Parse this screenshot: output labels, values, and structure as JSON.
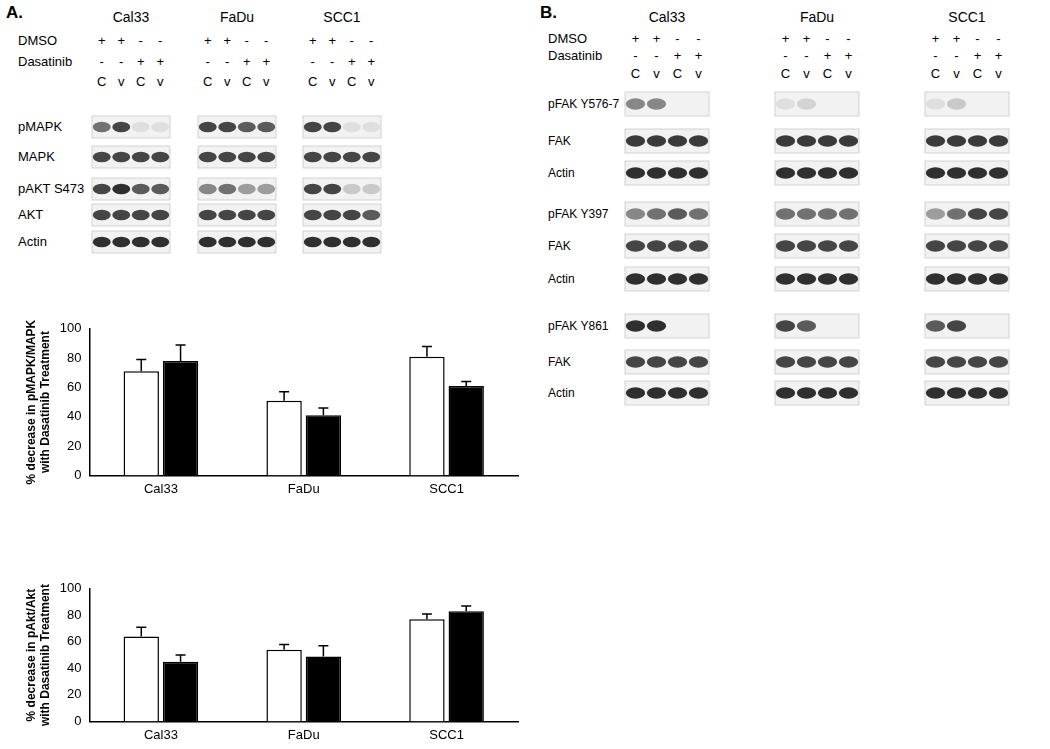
{
  "chart_data": [
    {
      "type": "bar",
      "categories": [
        "Cal33",
        "FaDu",
        "SCC1"
      ],
      "y_label": [
        "% decrease in pMAPK/MAPK",
        "with Dasatinib Treatment"
      ],
      "series": [
        {
          "color": "#ffffff",
          "values": [
            71,
            51,
            81
          ],
          "errors": [
            8,
            6,
            7
          ]
        },
        {
          "color": "#000000",
          "values": [
            78,
            41,
            61
          ],
          "errors": [
            11,
            5,
            3
          ]
        }
      ],
      "ylim": [
        0,
        100
      ],
      "yticks": [
        0,
        20,
        40,
        60,
        80,
        100
      ],
      "grid": false
    },
    {
      "type": "bar",
      "categories": [
        "Cal33",
        "FaDu",
        "SCC1"
      ],
      "y_label": [
        "% decrease in pAkt/Akt",
        "with Dasatinib Treatment"
      ],
      "series": [
        {
          "color": "#ffffff",
          "values": [
            64,
            54,
            77
          ],
          "errors": [
            7,
            4,
            4
          ]
        },
        {
          "color": "#000000",
          "values": [
            45,
            49,
            83
          ],
          "errors": [
            5,
            8,
            4
          ]
        }
      ],
      "ylim": [
        0,
        100
      ],
      "yticks": [
        0,
        20,
        40,
        60,
        80,
        100
      ],
      "grid": false
    }
  ],
  "panels": [
    {
      "label": "A.",
      "blot": {
        "cell_lines": [
          "Cal33",
          "FaDu",
          "SCC1"
        ],
        "treatments": [
          {
            "name": "DMSO",
            "signs": [
              "+",
              "+",
              "-",
              "-"
            ]
          },
          {
            "name": "Dasatinib",
            "signs": [
              "-",
              "-",
              "+",
              "+"
            ]
          }
        ],
        "lanes": [
          "C",
          "v",
          "C",
          "v"
        ],
        "groups": [
          {
            "rows": [
              {
                "name": "pMAPK",
                "bands": [
                  [
                    0.6,
                    0.8,
                    0.1,
                    0.1
                  ],
                  [
                    0.8,
                    0.8,
                    0.7,
                    0.7
                  ],
                  [
                    0.8,
                    0.8,
                    0.1,
                    0.1
                  ]
                ]
              },
              {
                "name": "MAPK",
                "bands": [
                  [
                    0.8,
                    0.8,
                    0.8,
                    0.8
                  ],
                  [
                    0.8,
                    0.8,
                    0.8,
                    0.8
                  ],
                  [
                    0.8,
                    0.8,
                    0.8,
                    0.8
                  ]
                ]
              },
              {
                "name": "pAKT S473",
                "bands": [
                  [
                    0.8,
                    0.9,
                    0.7,
                    0.7
                  ],
                  [
                    0.5,
                    0.6,
                    0.4,
                    0.4
                  ],
                  [
                    0.8,
                    0.8,
                    0.2,
                    0.2
                  ]
                ]
              },
              {
                "name": "AKT",
                "bands": [
                  [
                    0.8,
                    0.8,
                    0.8,
                    0.8
                  ],
                  [
                    0.8,
                    0.8,
                    0.8,
                    0.8
                  ],
                  [
                    0.8,
                    0.8,
                    0.8,
                    0.7
                  ]
                ]
              },
              {
                "name": "Actin",
                "bands": [
                  [
                    0.9,
                    0.9,
                    0.9,
                    0.9
                  ],
                  [
                    0.9,
                    0.9,
                    0.9,
                    0.9
                  ],
                  [
                    0.9,
                    0.9,
                    0.9,
                    0.9
                  ]
                ]
              }
            ]
          }
        ]
      }
    },
    {
      "label": "B.",
      "blot": {
        "cell_lines": [
          "Cal33",
          "FaDu",
          "SCC1"
        ],
        "treatments": [
          {
            "name": "DMSO",
            "signs": [
              "+",
              "+",
              "-",
              "-"
            ]
          },
          {
            "name": "Dasatinib",
            "signs": [
              "-",
              "-",
              "+",
              "+"
            ]
          }
        ],
        "lanes": [
          "C",
          "v",
          "C",
          "v"
        ],
        "groups": [
          {
            "rows": [
              {
                "name": "pFAK Y576-7",
                "bands": [
                  [
                    0.5,
                    0.5,
                    0,
                    0
                  ],
                  [
                    0.1,
                    0.15,
                    0,
                    0
                  ],
                  [
                    0.1,
                    0.2,
                    0,
                    0
                  ]
                ]
              },
              {
                "name": "FAK",
                "bands": [
                  [
                    0.85,
                    0.85,
                    0.85,
                    0.85
                  ],
                  [
                    0.85,
                    0.85,
                    0.85,
                    0.85
                  ],
                  [
                    0.85,
                    0.85,
                    0.85,
                    0.85
                  ]
                ]
              },
              {
                "name": "Actin",
                "bands": [
                  [
                    0.9,
                    0.9,
                    0.9,
                    0.9
                  ],
                  [
                    0.9,
                    0.9,
                    0.9,
                    0.9
                  ],
                  [
                    0.9,
                    0.9,
                    0.9,
                    0.9
                  ]
                ]
              }
            ]
          },
          {
            "rows": [
              {
                "name": "pFAK Y397",
                "bands": [
                  [
                    0.5,
                    0.6,
                    0.7,
                    0.6
                  ],
                  [
                    0.6,
                    0.6,
                    0.6,
                    0.6
                  ],
                  [
                    0.4,
                    0.6,
                    0.8,
                    0.8
                  ]
                ]
              },
              {
                "name": "FAK",
                "bands": [
                  [
                    0.8,
                    0.8,
                    0.8,
                    0.8
                  ],
                  [
                    0.8,
                    0.8,
                    0.8,
                    0.8
                  ],
                  [
                    0.8,
                    0.8,
                    0.8,
                    0.8
                  ]
                ]
              },
              {
                "name": "Actin",
                "bands": [
                  [
                    0.9,
                    0.9,
                    0.9,
                    0.9
                  ],
                  [
                    0.9,
                    0.9,
                    0.9,
                    0.9
                  ],
                  [
                    0.9,
                    0.9,
                    0.9,
                    0.9
                  ]
                ]
              }
            ]
          },
          {
            "rows": [
              {
                "name": "pFAK Y861",
                "bands": [
                  [
                    0.9,
                    0.9,
                    0,
                    0
                  ],
                  [
                    0.8,
                    0.7,
                    0,
                    0
                  ],
                  [
                    0.7,
                    0.8,
                    0,
                    0
                  ]
                ]
              },
              {
                "name": "FAK",
                "bands": [
                  [
                    0.8,
                    0.8,
                    0.8,
                    0.8
                  ],
                  [
                    0.8,
                    0.8,
                    0.8,
                    0.8
                  ],
                  [
                    0.8,
                    0.8,
                    0.8,
                    0.8
                  ]
                ]
              },
              {
                "name": "Actin",
                "bands": [
                  [
                    0.9,
                    0.9,
                    0.9,
                    0.9
                  ],
                  [
                    0.9,
                    0.9,
                    0.9,
                    0.9
                  ],
                  [
                    0.9,
                    0.9,
                    0.9,
                    0.9
                  ]
                ]
              }
            ]
          }
        ]
      }
    }
  ]
}
